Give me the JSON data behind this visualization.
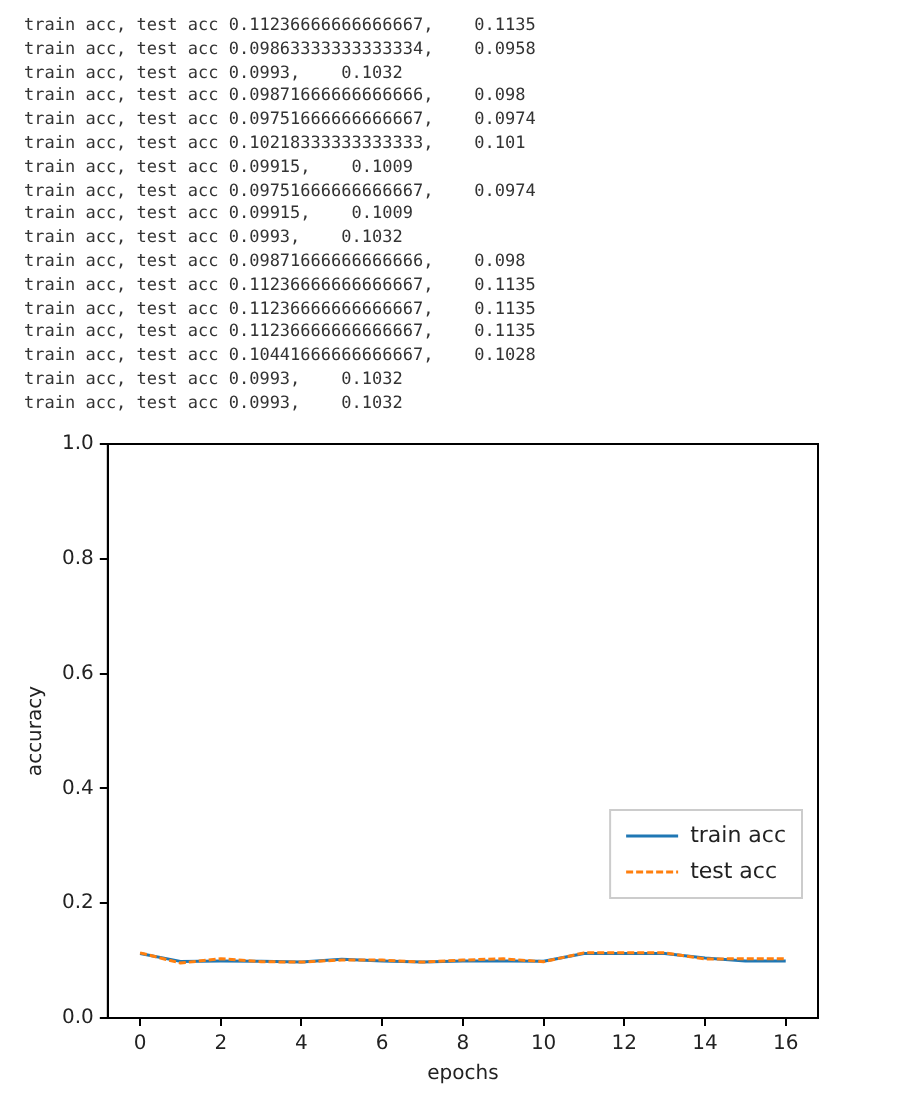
{
  "chart_data": {
    "type": "line",
    "xlabel": "epochs",
    "ylabel": "accuracy",
    "annotations": [
      "train acc, test acc 0.11236666666666667,    0.1135",
      "train acc, test acc 0.09863333333333334,    0.0958",
      "train acc, test acc 0.0993,    0.1032",
      "train acc, test acc 0.09871666666666666,    0.098",
      "train acc, test acc 0.09751666666666667,    0.0974",
      "train acc, test acc 0.10218333333333333,    0.101",
      "train acc, test acc 0.09915,    0.1009",
      "train acc, test acc 0.09751666666666667,    0.0974",
      "train acc, test acc 0.09915,    0.1009",
      "train acc, test acc 0.0993,    0.1032",
      "train acc, test acc 0.09871666666666666,    0.098",
      "train acc, test acc 0.11236666666666667,    0.1135",
      "train acc, test acc 0.11236666666666667,    0.1135",
      "train acc, test acc 0.11236666666666667,    0.1135",
      "train acc, test acc 0.10441666666666667,    0.1028",
      "train acc, test acc 0.0993,    0.1032",
      "train acc, test acc 0.0993,    0.1032"
    ],
    "x": [
      0,
      1,
      2,
      3,
      4,
      5,
      6,
      7,
      8,
      9,
      10,
      11,
      12,
      13,
      14,
      15,
      16
    ],
    "series": [
      {
        "name": "train acc",
        "color": "#1f77b4",
        "line_style": "solid",
        "values": [
          0.11236666666666667,
          0.09863333333333334,
          0.0993,
          0.09871666666666666,
          0.09751666666666667,
          0.10218333333333333,
          0.09915,
          0.09751666666666667,
          0.09915,
          0.0993,
          0.09871666666666666,
          0.11236666666666667,
          0.11236666666666667,
          0.11236666666666667,
          0.10441666666666667,
          0.0993,
          0.0993
        ]
      },
      {
        "name": "test acc",
        "color": "#ff7f0e",
        "line_style": "dashed",
        "values": [
          0.1135,
          0.0958,
          0.1032,
          0.098,
          0.0974,
          0.101,
          0.1009,
          0.0974,
          0.1009,
          0.1032,
          0.098,
          0.1135,
          0.1135,
          0.1135,
          0.1028,
          0.1032,
          0.1032
        ]
      }
    ],
    "xlim": [
      -0.8,
      16.8
    ],
    "xticks": [
      0,
      2,
      4,
      6,
      8,
      10,
      12,
      14,
      16
    ],
    "ylim": [
      0,
      1
    ],
    "yticks": [
      {
        "value": 0,
        "label": "0.0"
      },
      0.2,
      0.4,
      0.6,
      0.8,
      {
        "value": 1,
        "label": "1.0"
      }
    ],
    "grid": false,
    "legend": "bottom right",
    "marker": "none"
  }
}
